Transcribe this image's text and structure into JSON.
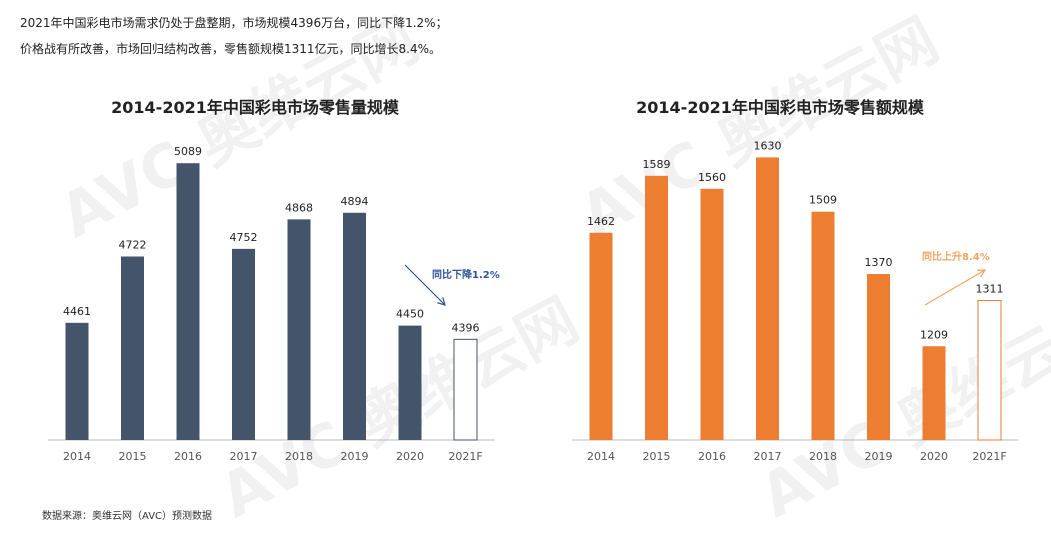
{
  "intro": [
    "2021年中国彩电市场需求仍处于盘整期，市场规模4396万台，同比下降1.2%；",
    "价格战有所改善，市场回归结构改善，零售额规模1311亿元，同比增长8.4%。"
  ],
  "source": "数据来源：奥维云网（AVC）预测数据",
  "watermark": "AVC 奥维云网 ALL VIEW CLOUD",
  "chart_data": [
    {
      "type": "bar",
      "title": "2014-2021年中国彩电市场零售量规模",
      "categories": [
        "2014",
        "2015",
        "2016",
        "2017",
        "2018",
        "2019",
        "2020",
        "2021F"
      ],
      "values": [
        4461,
        4722,
        5089,
        4752,
        4868,
        4894,
        4450,
        4396
      ],
      "ylim": [
        4000,
        5200
      ],
      "color": "#44546a",
      "forecast_style": "outline",
      "annotation": {
        "text": "同比下降1.2%",
        "color": "#2f5597"
      }
    },
    {
      "type": "bar",
      "title": "2014-2021年中国彩电市场零售额规模",
      "categories": [
        "2014",
        "2015",
        "2016",
        "2017",
        "2018",
        "2019",
        "2020",
        "2021F"
      ],
      "values": [
        1462,
        1589,
        1560,
        1630,
        1509,
        1370,
        1209,
        1311
      ],
      "ylim": [
        1000,
        1680
      ],
      "color": "#ed7d31",
      "forecast_style": "outline",
      "annotation": {
        "text": "同比上升8.4%",
        "color": "#f4a460"
      }
    }
  ]
}
